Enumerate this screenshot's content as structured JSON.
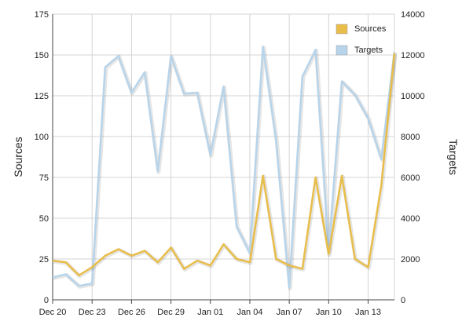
{
  "chart_data": {
    "type": "line",
    "x": [
      "Dec 20",
      "Dec 21",
      "Dec 22",
      "Dec 23",
      "Dec 24",
      "Dec 25",
      "Dec 26",
      "Dec 27",
      "Dec 28",
      "Dec 29",
      "Dec 30",
      "Dec 31",
      "Jan 01",
      "Jan 02",
      "Jan 03",
      "Jan 04",
      "Jan 05",
      "Jan 06",
      "Jan 07",
      "Jan 08",
      "Jan 09",
      "Jan 10",
      "Jan 11",
      "Jan 12",
      "Jan 13",
      "Jan 14",
      "Jan 15"
    ],
    "x_tick_labels": [
      "Dec 20",
      "Dec 23",
      "Dec 26",
      "Dec 29",
      "Jan 01",
      "Jan 04",
      "Jan 07",
      "Jan 10",
      "Jan 13"
    ],
    "series": [
      {
        "name": "Sources",
        "axis": "left",
        "color": "#e8bd4a",
        "values": [
          24,
          23,
          15,
          20,
          27,
          31,
          27,
          30,
          23,
          32,
          19,
          24,
          21,
          34,
          25,
          23,
          76,
          25,
          21,
          19,
          75,
          28,
          76,
          25,
          20,
          70,
          151
        ]
      },
      {
        "name": "Targets",
        "axis": "right",
        "color": "#b7d4ea",
        "values": [
          1100,
          1250,
          680,
          800,
          11400,
          11950,
          10150,
          11150,
          6300,
          11950,
          10100,
          10150,
          7100,
          10450,
          3600,
          2300,
          12400,
          7800,
          600,
          10950,
          12250,
          2400,
          10700,
          10050,
          8900,
          6900,
          12150
        ]
      }
    ],
    "yaxis_left": {
      "label": "Sources",
      "ylim": [
        0,
        175
      ],
      "ticks": [
        "0",
        "25",
        "50",
        "75",
        "100",
        "125",
        "150",
        "175"
      ]
    },
    "yaxis_right": {
      "label": "Targets",
      "ylim": [
        0,
        14000
      ],
      "ticks": [
        "0",
        "2000",
        "4000",
        "6000",
        "8000",
        "10000",
        "12000",
        "14000"
      ]
    },
    "grid": true,
    "legend_position": "top-right"
  }
}
